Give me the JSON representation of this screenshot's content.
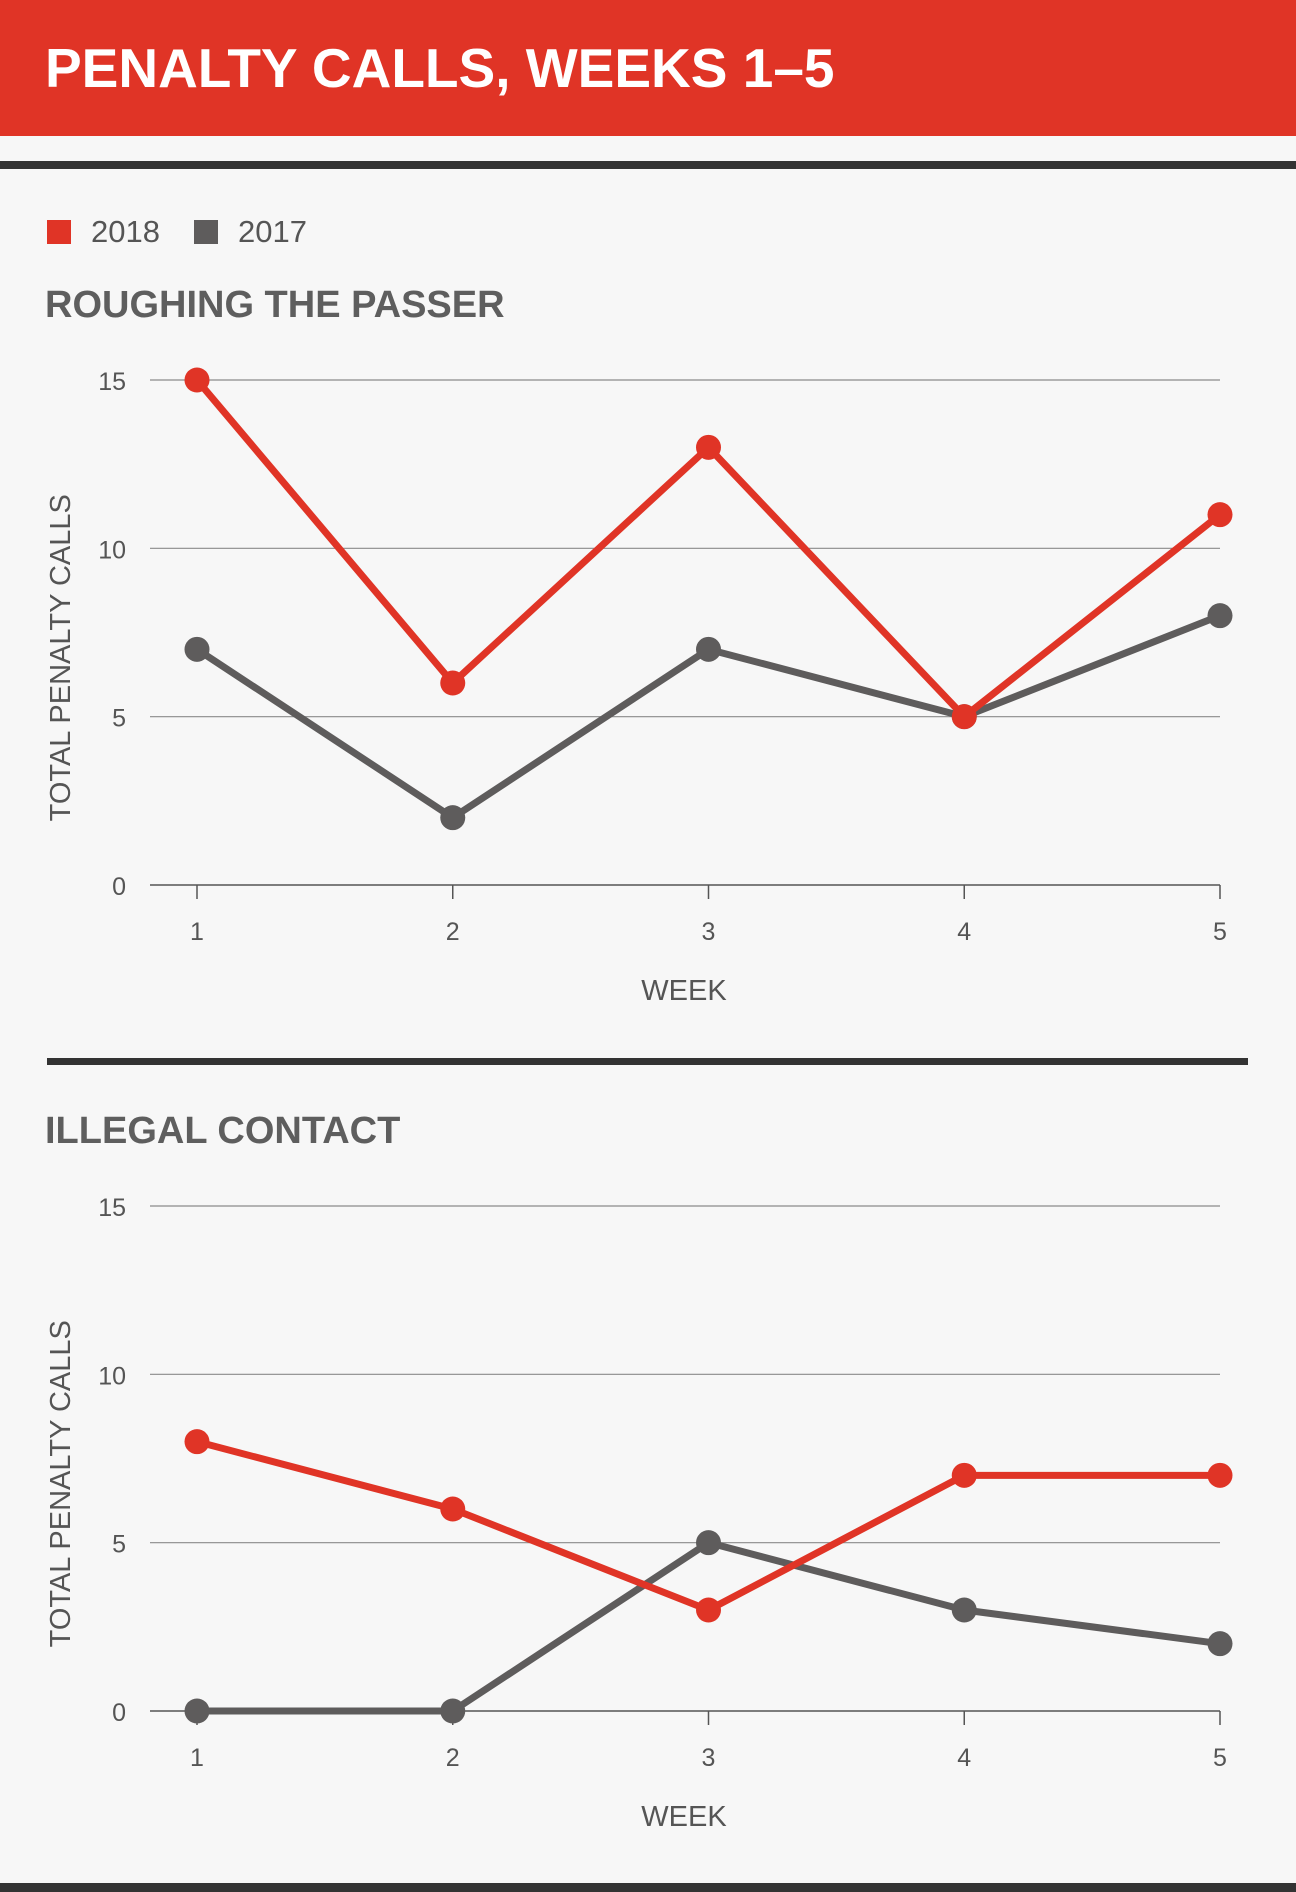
{
  "header": {
    "title": "PENALTY CALLS, WEEKS 1–5"
  },
  "legend": [
    {
      "label": "2018",
      "color": "#e03426"
    },
    {
      "label": "2017",
      "color": "#5e5c5c"
    }
  ],
  "chart_data": [
    {
      "type": "line",
      "title": "ROUGHING THE PASSER",
      "xlabel": "WEEK",
      "ylabel": "TOTAL PENALTY CALLS",
      "x": [
        1,
        2,
        3,
        4,
        5
      ],
      "ylim": [
        0,
        15
      ],
      "yticks": [
        0,
        5,
        10,
        15
      ],
      "grid": true,
      "series": [
        {
          "name": "2018",
          "color": "#e03426",
          "values": [
            15,
            6,
            13,
            5,
            11
          ]
        },
        {
          "name": "2017",
          "color": "#5e5c5c",
          "values": [
            7,
            2,
            7,
            5,
            8
          ]
        }
      ]
    },
    {
      "type": "line",
      "title": "ILLEGAL CONTACT",
      "xlabel": "WEEK",
      "ylabel": "TOTAL PENALTY CALLS",
      "x": [
        1,
        2,
        3,
        4,
        5
      ],
      "ylim": [
        0,
        15
      ],
      "yticks": [
        0,
        5,
        10,
        15
      ],
      "grid": true,
      "series": [
        {
          "name": "2018",
          "color": "#e03426",
          "values": [
            8,
            6,
            3,
            7,
            7
          ]
        },
        {
          "name": "2017",
          "color": "#5e5c5c",
          "values": [
            0,
            0,
            5,
            3,
            2
          ]
        }
      ]
    }
  ]
}
